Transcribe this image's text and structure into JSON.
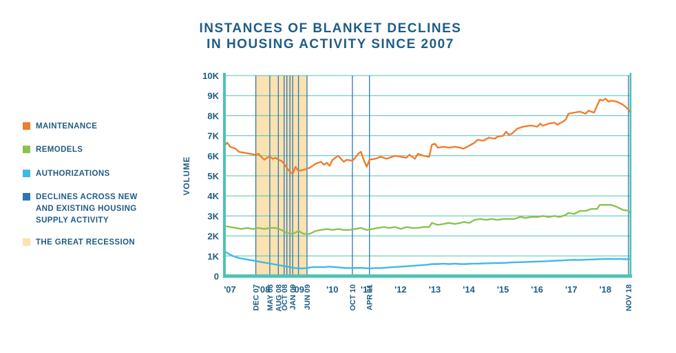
{
  "title": {
    "line1": "INSTANCES OF BLANKET DECLINES",
    "line2": "IN HOUSING ACTIVITY SINCE 2007"
  },
  "legend": [
    {
      "label": "MAINTENANCE",
      "color": "#ef7d2c",
      "kind": "series"
    },
    {
      "label": "REMODELS",
      "color": "#8cc152",
      "kind": "series"
    },
    {
      "label": "AUTHORIZATIONS",
      "color": "#3fb8e8",
      "kind": "series"
    },
    {
      "label": "DECLINES ACROSS NEW\nAND EXISTING HOUSING\nSUPPLY ACTIVITY",
      "color": "#2f75b5",
      "kind": "marker"
    },
    {
      "label": "THE GREAT RECESSION",
      "color": "#fbe2b0",
      "kind": "band"
    }
  ],
  "chart_data": {
    "type": "line",
    "title": "INSTANCES OF BLANKET DECLINES IN HOUSING ACTIVITY SINCE 2007",
    "ylabel": "VOLUME",
    "xlabel": "",
    "x_range": [
      2007.0,
      2018.9
    ],
    "ylim": [
      0,
      10000
    ],
    "y_ticks": [
      0,
      1000,
      2000,
      3000,
      4000,
      5000,
      6000,
      7000,
      8000,
      9000,
      10000
    ],
    "y_tick_labels": [
      "0",
      "1K",
      "2K",
      "3K",
      "4K",
      "5K",
      "6K",
      "7K",
      "8K",
      "9K",
      "10K"
    ],
    "x_ticks": [
      {
        "x": 2007.0,
        "label": "'07"
      },
      {
        "x": 2008.0,
        "label": "'08"
      },
      {
        "x": 2009.0,
        "label": "'09"
      },
      {
        "x": 2010.0,
        "label": "'10"
      },
      {
        "x": 2011.0,
        "label": "'11"
      },
      {
        "x": 2012.0,
        "label": "'12"
      },
      {
        "x": 2013.0,
        "label": "'13"
      },
      {
        "x": 2014.0,
        "label": "'14"
      },
      {
        "x": 2015.0,
        "label": "'15"
      },
      {
        "x": 2016.0,
        "label": "'16"
      },
      {
        "x": 2017.0,
        "label": "'17"
      },
      {
        "x": 2018.0,
        "label": "'18"
      }
    ],
    "grid": true,
    "legend_position": "left",
    "recession_band": {
      "start": 2007.92,
      "end": 2009.42
    },
    "decline_markers": [
      {
        "x": 2007.92,
        "label": "DEC 07"
      },
      {
        "x": 2008.33,
        "label": "MAY 08"
      },
      {
        "x": 2008.58,
        "label": "AUG 08"
      },
      {
        "x": 2008.75,
        "label": "OCT 08"
      },
      {
        "x": 2008.83,
        "label": ""
      },
      {
        "x": 2008.92,
        "label": ""
      },
      {
        "x": 2009.0,
        "label": "JAN 09"
      },
      {
        "x": 2009.17,
        "label": ""
      },
      {
        "x": 2009.42,
        "label": "JUN 09"
      },
      {
        "x": 2010.75,
        "label": "OCT 10"
      },
      {
        "x": 2011.25,
        "label": "APR 11"
      },
      {
        "x": 2018.84,
        "label": "NOV 18"
      }
    ],
    "series": [
      {
        "name": "MAINTENANCE",
        "color": "#ef7d2c",
        "points": [
          [
            2007.0,
            6500
          ],
          [
            2007.08,
            6650
          ],
          [
            2007.17,
            6450
          ],
          [
            2007.33,
            6350
          ],
          [
            2007.42,
            6200
          ],
          [
            2007.58,
            6150
          ],
          [
            2007.75,
            6100
          ],
          [
            2007.92,
            6050
          ],
          [
            2008.0,
            6100
          ],
          [
            2008.08,
            5950
          ],
          [
            2008.17,
            5800
          ],
          [
            2008.25,
            5900
          ],
          [
            2008.33,
            5950
          ],
          [
            2008.42,
            5850
          ],
          [
            2008.5,
            5900
          ],
          [
            2008.58,
            5800
          ],
          [
            2008.67,
            5750
          ],
          [
            2008.75,
            5600
          ],
          [
            2008.83,
            5400
          ],
          [
            2008.92,
            5200
          ],
          [
            2009.0,
            5100
          ],
          [
            2009.08,
            5450
          ],
          [
            2009.17,
            5250
          ],
          [
            2009.33,
            5300
          ],
          [
            2009.5,
            5400
          ],
          [
            2009.67,
            5600
          ],
          [
            2009.83,
            5700
          ],
          [
            2009.92,
            5550
          ],
          [
            2010.0,
            5650
          ],
          [
            2010.08,
            5500
          ],
          [
            2010.17,
            5800
          ],
          [
            2010.25,
            5900
          ],
          [
            2010.33,
            6000
          ],
          [
            2010.5,
            5700
          ],
          [
            2010.58,
            5800
          ],
          [
            2010.75,
            5750
          ],
          [
            2010.83,
            5900
          ],
          [
            2010.92,
            6100
          ],
          [
            2011.0,
            6200
          ],
          [
            2011.08,
            5800
          ],
          [
            2011.17,
            5450
          ],
          [
            2011.25,
            5800
          ],
          [
            2011.42,
            5850
          ],
          [
            2011.58,
            5950
          ],
          [
            2011.75,
            5850
          ],
          [
            2011.92,
            5950
          ],
          [
            2012.0,
            6000
          ],
          [
            2012.17,
            5950
          ],
          [
            2012.33,
            5900
          ],
          [
            2012.42,
            6050
          ],
          [
            2012.58,
            5850
          ],
          [
            2012.67,
            6100
          ],
          [
            2012.83,
            6000
          ],
          [
            2013.0,
            5950
          ],
          [
            2013.08,
            6550
          ],
          [
            2013.17,
            6600
          ],
          [
            2013.25,
            6400
          ],
          [
            2013.42,
            6450
          ],
          [
            2013.58,
            6400
          ],
          [
            2013.75,
            6450
          ],
          [
            2013.92,
            6400
          ],
          [
            2014.0,
            6350
          ],
          [
            2014.17,
            6500
          ],
          [
            2014.33,
            6650
          ],
          [
            2014.42,
            6800
          ],
          [
            2014.58,
            6750
          ],
          [
            2014.75,
            6900
          ],
          [
            2014.92,
            6850
          ],
          [
            2015.0,
            6950
          ],
          [
            2015.17,
            7000
          ],
          [
            2015.25,
            7200
          ],
          [
            2015.33,
            7050
          ],
          [
            2015.42,
            7100
          ],
          [
            2015.58,
            7350
          ],
          [
            2015.75,
            7450
          ],
          [
            2015.92,
            7500
          ],
          [
            2016.0,
            7500
          ],
          [
            2016.17,
            7450
          ],
          [
            2016.25,
            7600
          ],
          [
            2016.33,
            7500
          ],
          [
            2016.5,
            7600
          ],
          [
            2016.67,
            7650
          ],
          [
            2016.75,
            7550
          ],
          [
            2016.92,
            7700
          ],
          [
            2017.0,
            7800
          ],
          [
            2017.08,
            8100
          ],
          [
            2017.25,
            8150
          ],
          [
            2017.42,
            8200
          ],
          [
            2017.58,
            8100
          ],
          [
            2017.67,
            8250
          ],
          [
            2017.75,
            8200
          ],
          [
            2017.83,
            8150
          ],
          [
            2017.92,
            8500
          ],
          [
            2018.0,
            8800
          ],
          [
            2018.08,
            8750
          ],
          [
            2018.17,
            8850
          ],
          [
            2018.25,
            8700
          ],
          [
            2018.33,
            8750
          ],
          [
            2018.5,
            8700
          ],
          [
            2018.67,
            8550
          ],
          [
            2018.75,
            8450
          ],
          [
            2018.84,
            8300
          ],
          [
            2018.9,
            8150
          ]
        ]
      },
      {
        "name": "REMODELS",
        "color": "#8cc152",
        "points": [
          [
            2007.0,
            2500
          ],
          [
            2007.17,
            2450
          ],
          [
            2007.33,
            2400
          ],
          [
            2007.5,
            2350
          ],
          [
            2007.67,
            2400
          ],
          [
            2007.83,
            2350
          ],
          [
            2008.0,
            2400
          ],
          [
            2008.17,
            2350
          ],
          [
            2008.33,
            2400
          ],
          [
            2008.5,
            2400
          ],
          [
            2008.67,
            2300
          ],
          [
            2008.83,
            2150
          ],
          [
            2009.0,
            2100
          ],
          [
            2009.17,
            2250
          ],
          [
            2009.33,
            2100
          ],
          [
            2009.5,
            2100
          ],
          [
            2009.67,
            2250
          ],
          [
            2009.83,
            2300
          ],
          [
            2010.0,
            2350
          ],
          [
            2010.17,
            2300
          ],
          [
            2010.33,
            2350
          ],
          [
            2010.5,
            2300
          ],
          [
            2010.67,
            2300
          ],
          [
            2010.83,
            2350
          ],
          [
            2011.0,
            2400
          ],
          [
            2011.17,
            2300
          ],
          [
            2011.33,
            2350
          ],
          [
            2011.5,
            2400
          ],
          [
            2011.67,
            2450
          ],
          [
            2011.83,
            2400
          ],
          [
            2012.0,
            2450
          ],
          [
            2012.17,
            2350
          ],
          [
            2012.33,
            2450
          ],
          [
            2012.5,
            2400
          ],
          [
            2012.67,
            2400
          ],
          [
            2012.83,
            2450
          ],
          [
            2013.0,
            2450
          ],
          [
            2013.08,
            2650
          ],
          [
            2013.25,
            2550
          ],
          [
            2013.42,
            2600
          ],
          [
            2013.58,
            2650
          ],
          [
            2013.75,
            2600
          ],
          [
            2013.92,
            2650
          ],
          [
            2014.0,
            2700
          ],
          [
            2014.17,
            2650
          ],
          [
            2014.33,
            2800
          ],
          [
            2014.5,
            2850
          ],
          [
            2014.67,
            2800
          ],
          [
            2014.83,
            2850
          ],
          [
            2015.0,
            2800
          ],
          [
            2015.17,
            2850
          ],
          [
            2015.33,
            2850
          ],
          [
            2015.5,
            2850
          ],
          [
            2015.67,
            2950
          ],
          [
            2015.83,
            2900
          ],
          [
            2016.0,
            2950
          ],
          [
            2016.17,
            2950
          ],
          [
            2016.33,
            3000
          ],
          [
            2016.5,
            2950
          ],
          [
            2016.67,
            3000
          ],
          [
            2016.83,
            2950
          ],
          [
            2017.0,
            3050
          ],
          [
            2017.08,
            3150
          ],
          [
            2017.25,
            3100
          ],
          [
            2017.42,
            3250
          ],
          [
            2017.58,
            3250
          ],
          [
            2017.75,
            3350
          ],
          [
            2017.92,
            3350
          ],
          [
            2018.0,
            3550
          ],
          [
            2018.17,
            3550
          ],
          [
            2018.33,
            3550
          ],
          [
            2018.5,
            3450
          ],
          [
            2018.67,
            3300
          ],
          [
            2018.84,
            3250
          ],
          [
            2018.9,
            3150
          ]
        ]
      },
      {
        "name": "AUTHORIZATIONS",
        "color": "#3fb8e8",
        "points": [
          [
            2007.0,
            1250
          ],
          [
            2007.08,
            1150
          ],
          [
            2007.25,
            1000
          ],
          [
            2007.42,
            900
          ],
          [
            2007.58,
            850
          ],
          [
            2007.75,
            800
          ],
          [
            2007.92,
            750
          ],
          [
            2008.08,
            700
          ],
          [
            2008.25,
            650
          ],
          [
            2008.42,
            600
          ],
          [
            2008.58,
            550
          ],
          [
            2008.75,
            500
          ],
          [
            2008.92,
            450
          ],
          [
            2009.08,
            400
          ],
          [
            2009.25,
            380
          ],
          [
            2009.42,
            400
          ],
          [
            2009.58,
            450
          ],
          [
            2009.75,
            450
          ],
          [
            2009.92,
            450
          ],
          [
            2010.08,
            470
          ],
          [
            2010.25,
            450
          ],
          [
            2010.42,
            420
          ],
          [
            2010.58,
            400
          ],
          [
            2010.75,
            400
          ],
          [
            2010.92,
            410
          ],
          [
            2011.08,
            400
          ],
          [
            2011.25,
            380
          ],
          [
            2011.42,
            400
          ],
          [
            2011.58,
            400
          ],
          [
            2011.75,
            420
          ],
          [
            2011.92,
            450
          ],
          [
            2012.08,
            460
          ],
          [
            2012.25,
            480
          ],
          [
            2012.42,
            500
          ],
          [
            2012.58,
            520
          ],
          [
            2012.75,
            540
          ],
          [
            2012.92,
            560
          ],
          [
            2013.08,
            600
          ],
          [
            2013.25,
            600
          ],
          [
            2013.42,
            620
          ],
          [
            2013.58,
            600
          ],
          [
            2013.75,
            620
          ],
          [
            2013.92,
            600
          ],
          [
            2014.08,
            600
          ],
          [
            2014.25,
            620
          ],
          [
            2014.42,
            620
          ],
          [
            2014.58,
            630
          ],
          [
            2014.75,
            640
          ],
          [
            2014.92,
            650
          ],
          [
            2015.08,
            650
          ],
          [
            2015.25,
            660
          ],
          [
            2015.42,
            680
          ],
          [
            2015.58,
            690
          ],
          [
            2015.75,
            700
          ],
          [
            2015.92,
            710
          ],
          [
            2016.08,
            720
          ],
          [
            2016.25,
            730
          ],
          [
            2016.42,
            740
          ],
          [
            2016.58,
            760
          ],
          [
            2016.75,
            770
          ],
          [
            2016.92,
            780
          ],
          [
            2017.08,
            800
          ],
          [
            2017.25,
            810
          ],
          [
            2017.42,
            800
          ],
          [
            2017.58,
            820
          ],
          [
            2017.75,
            830
          ],
          [
            2017.92,
            840
          ],
          [
            2018.08,
            850
          ],
          [
            2018.25,
            860
          ],
          [
            2018.42,
            850
          ],
          [
            2018.58,
            860
          ],
          [
            2018.75,
            840
          ],
          [
            2018.9,
            850
          ]
        ]
      }
    ]
  }
}
